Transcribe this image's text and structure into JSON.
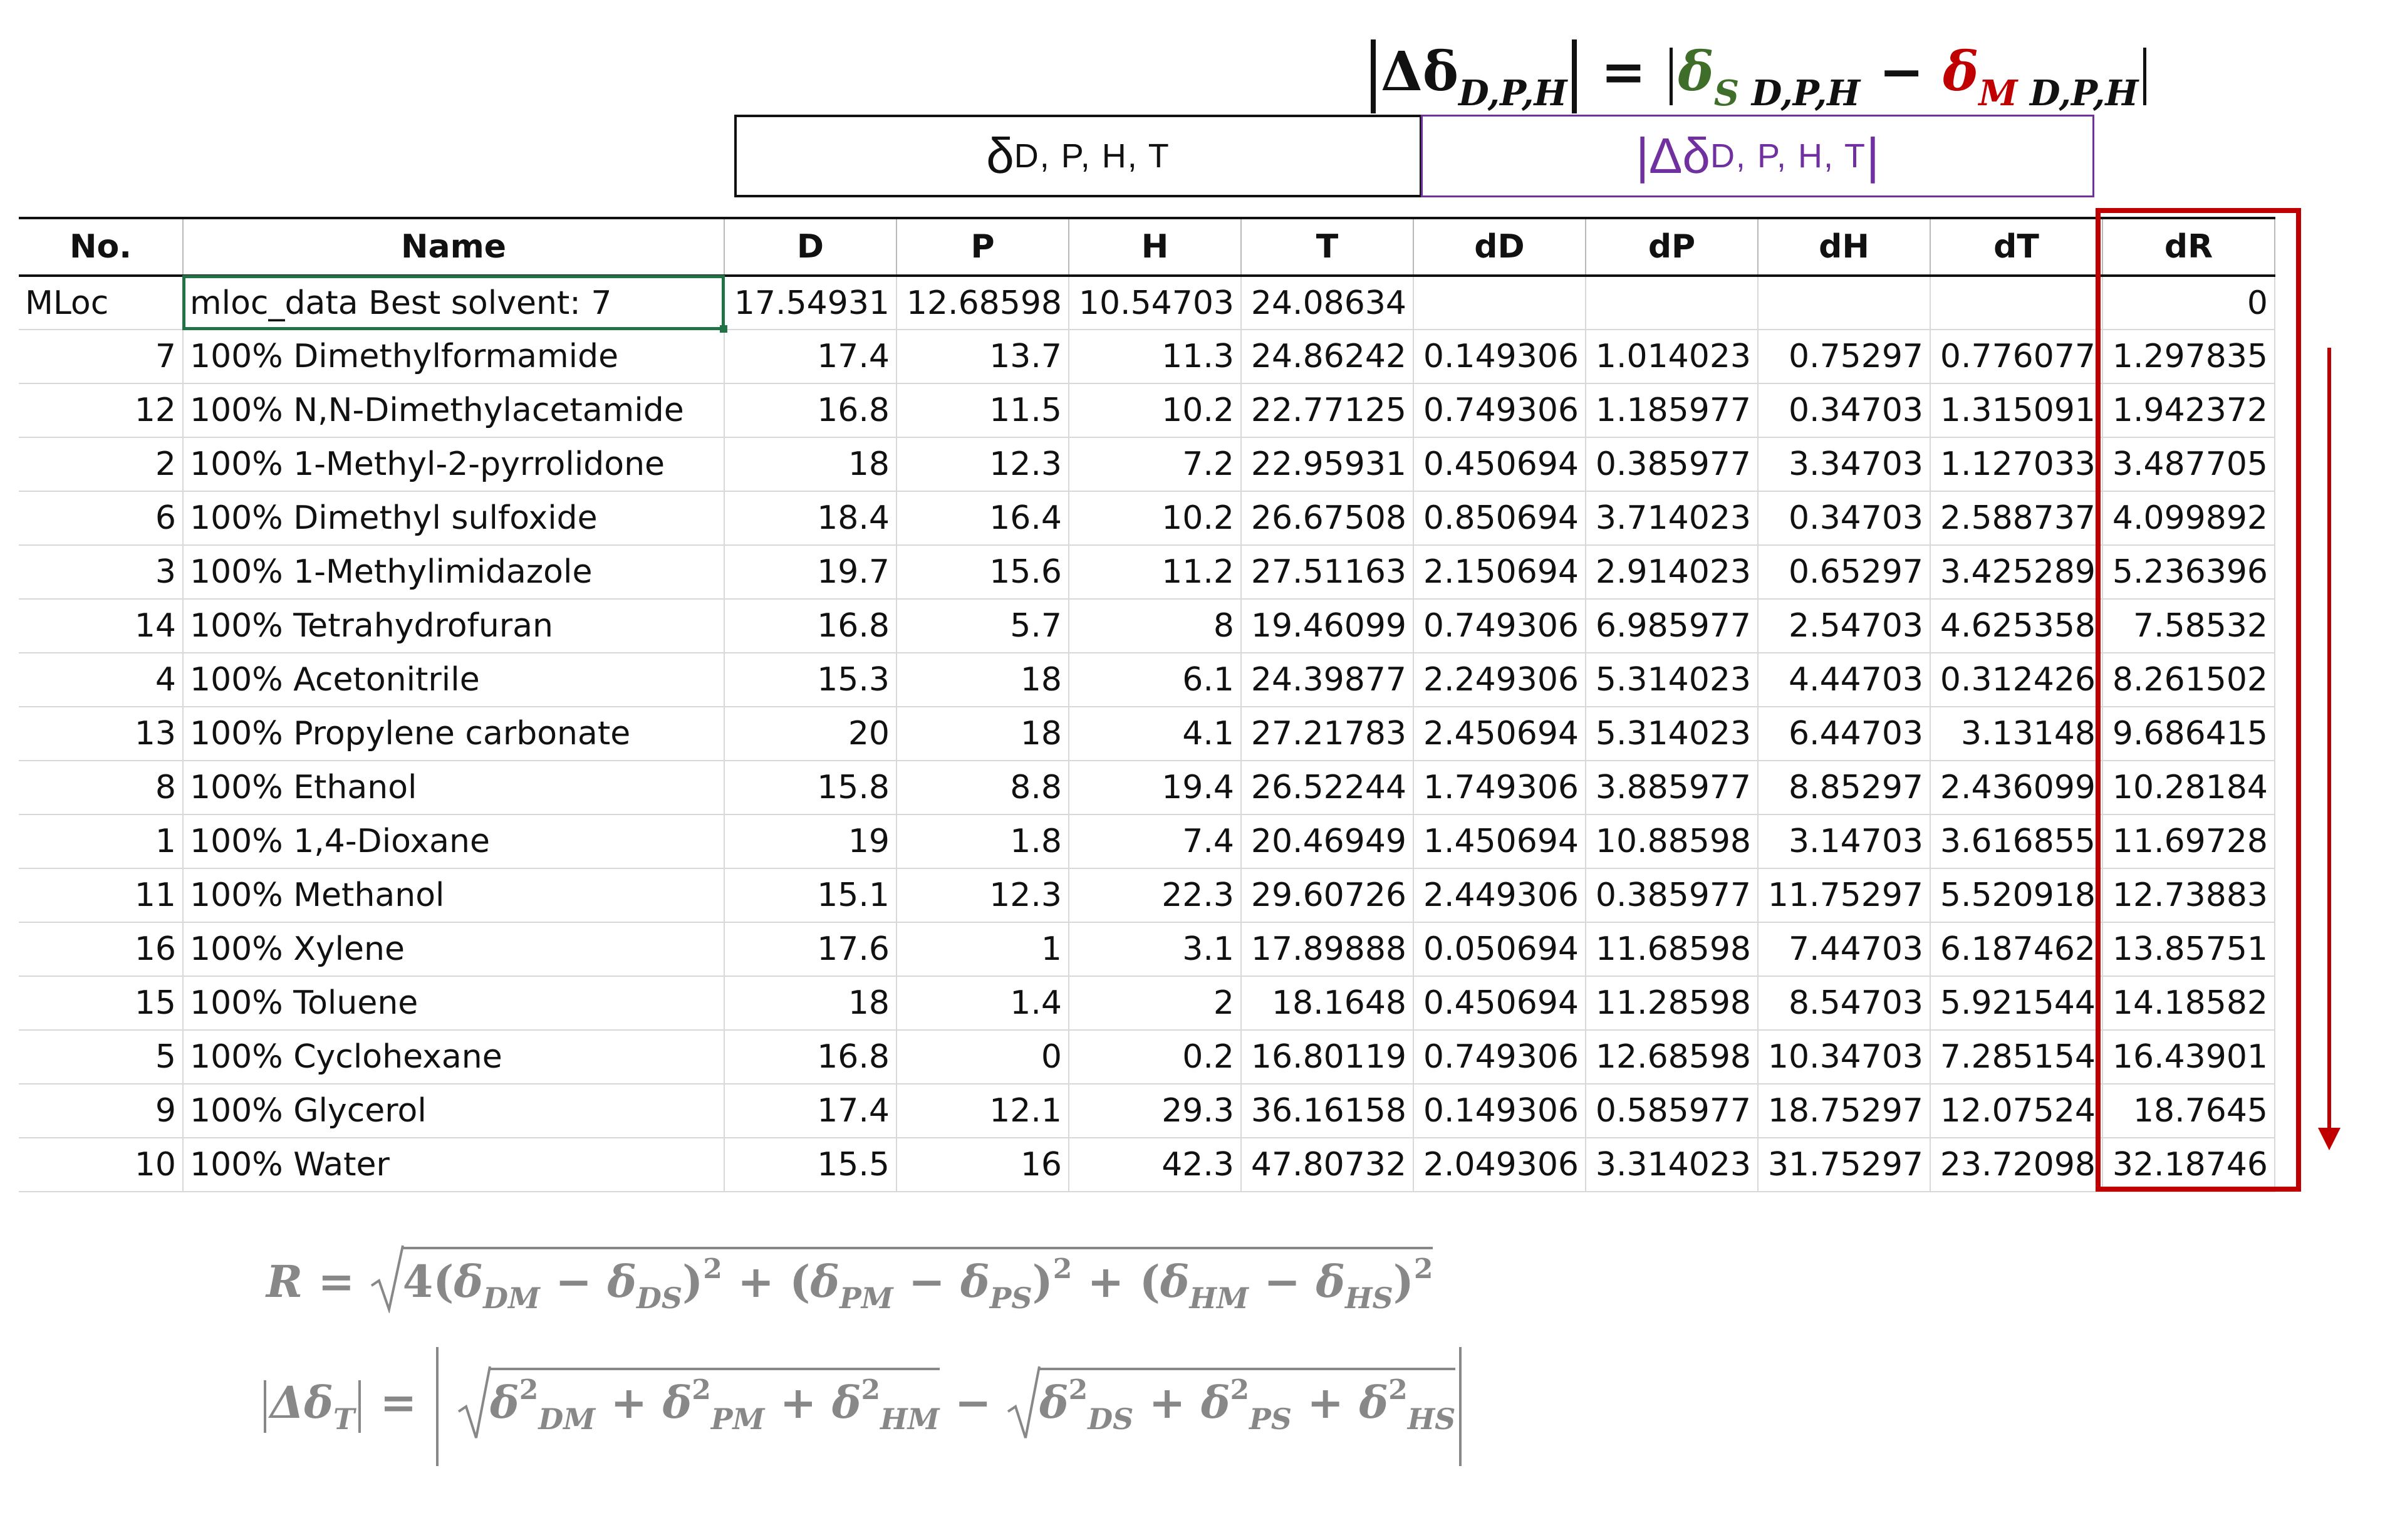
{
  "top_formula": {
    "lhs_symbol": "Δδ",
    "lhs_sub": "D,P,H",
    "equals": "=",
    "s_symbol": "δ",
    "s_sub_letter": "S",
    "s_sub_rest": " D,P,H",
    "minus": "−",
    "m_symbol": "δ",
    "m_sub_letter": "M",
    "m_sub_rest": " D,P,H"
  },
  "group_headers": {
    "delta": {
      "symbol": "δ",
      "sub": "D, P, H, T"
    },
    "abs_delta": {
      "bar_left": "|",
      "symbol": "Δδ",
      "sub": "D, P, H, T",
      "bar_right": "|"
    }
  },
  "table": {
    "headers": [
      "No.",
      "Name",
      "D",
      "P",
      "H",
      "T",
      "dD",
      "dP",
      "dH",
      "dT",
      "dR"
    ],
    "mloc": {
      "no": "MLoc",
      "name": "mloc_data Best solvent: 7",
      "D": "17.54931",
      "P": "12.68598",
      "H": "10.54703",
      "T": "24.08634",
      "dD": "",
      "dP": "",
      "dH": "",
      "dT": "",
      "dR": "0"
    },
    "rows": [
      [
        "7",
        "100% Dimethylformamide",
        "17.4",
        "13.7",
        "11.3",
        "24.86242",
        "0.149306",
        "1.014023",
        "0.75297",
        "0.776077",
        "1.297835"
      ],
      [
        "12",
        "100% N,N-Dimethylacetamide",
        "16.8",
        "11.5",
        "10.2",
        "22.77125",
        "0.749306",
        "1.185977",
        "0.34703",
        "1.315091",
        "1.942372"
      ],
      [
        "2",
        "100% 1-Methyl-2-pyrrolidone",
        "18",
        "12.3",
        "7.2",
        "22.95931",
        "0.450694",
        "0.385977",
        "3.34703",
        "1.127033",
        "3.487705"
      ],
      [
        "6",
        "100% Dimethyl sulfoxide",
        "18.4",
        "16.4",
        "10.2",
        "26.67508",
        "0.850694",
        "3.714023",
        "0.34703",
        "2.588737",
        "4.099892"
      ],
      [
        "3",
        "100% 1-Methylimidazole",
        "19.7",
        "15.6",
        "11.2",
        "27.51163",
        "2.150694",
        "2.914023",
        "0.65297",
        "3.425289",
        "5.236396"
      ],
      [
        "14",
        "100% Tetrahydrofuran",
        "16.8",
        "5.7",
        "8",
        "19.46099",
        "0.749306",
        "6.985977",
        "2.54703",
        "4.625358",
        "7.58532"
      ],
      [
        "4",
        "100% Acetonitrile",
        "15.3",
        "18",
        "6.1",
        "24.39877",
        "2.249306",
        "5.314023",
        "4.44703",
        "0.312426",
        "8.261502"
      ],
      [
        "13",
        "100% Propylene carbonate",
        "20",
        "18",
        "4.1",
        "27.21783",
        "2.450694",
        "5.314023",
        "6.44703",
        "3.13148",
        "9.686415"
      ],
      [
        "8",
        "100% Ethanol",
        "15.8",
        "8.8",
        "19.4",
        "26.52244",
        "1.749306",
        "3.885977",
        "8.85297",
        "2.436099",
        "10.28184"
      ],
      [
        "1",
        "100% 1,4-Dioxane",
        "19",
        "1.8",
        "7.4",
        "20.46949",
        "1.450694",
        "10.88598",
        "3.14703",
        "3.616855",
        "11.69728"
      ],
      [
        "11",
        "100% Methanol",
        "15.1",
        "12.3",
        "22.3",
        "29.60726",
        "2.449306",
        "0.385977",
        "11.75297",
        "5.520918",
        "12.73883"
      ],
      [
        "16",
        "100% Xylene",
        "17.6",
        "1",
        "3.1",
        "17.89888",
        "0.050694",
        "11.68598",
        "7.44703",
        "6.187462",
        "13.85751"
      ],
      [
        "15",
        "100% Toluene",
        "18",
        "1.4",
        "2",
        "18.1648",
        "0.450694",
        "11.28598",
        "8.54703",
        "5.921544",
        "14.18582"
      ],
      [
        "5",
        "100% Cyclohexane",
        "16.8",
        "0",
        "0.2",
        "16.80119",
        "0.749306",
        "12.68598",
        "10.34703",
        "7.285154",
        "16.43901"
      ],
      [
        "9",
        "100% Glycerol",
        "17.4",
        "12.1",
        "29.3",
        "36.16158",
        "0.149306",
        "0.585977",
        "18.75297",
        "12.07524",
        "18.7645"
      ],
      [
        "10",
        "100% Water",
        "15.5",
        "16",
        "42.3",
        "47.80732",
        "2.049306",
        "3.314023",
        "31.75297",
        "23.72098",
        "32.18746"
      ]
    ]
  },
  "formula_r": {
    "lhs": "R =",
    "coef": "4(",
    "d1": "δ",
    "s1": "DM",
    "minus1": " − ",
    "d2": "δ",
    "s2": "DS",
    "close1": ")",
    "pow1": "2",
    "plus1": " + (",
    "d3": "δ",
    "s3": "PM",
    "minus2": " − ",
    "d4": "δ",
    "s4": "PS",
    "close2": ")",
    "pow2": "2",
    "plus2": " + (",
    "d5": "δ",
    "s5": "HM",
    "minus3": " − ",
    "d6": "δ",
    "s6": "HS",
    "close3": ")",
    "pow3": "2"
  },
  "formula_t": {
    "lhs_symbol": "Δδ",
    "lhs_sub": "T",
    "equals": " = ",
    "a1": "δ",
    "a1p": "2",
    "a1s": "DM",
    "plus_a": " + ",
    "a2": "δ",
    "a2p": "2",
    "a2s": "PM",
    "plus_b": " + ",
    "a3": "δ",
    "a3p": "2",
    "a3s": "HM",
    "minus": " − ",
    "b1": "δ",
    "b1p": "2",
    "b1s": "DS",
    "plus_c": " + ",
    "b2": "δ",
    "b2p": "2",
    "b2s": "PS",
    "plus_d": " + ",
    "b3": "δ",
    "b3p": "2",
    "b3s": "HS"
  }
}
